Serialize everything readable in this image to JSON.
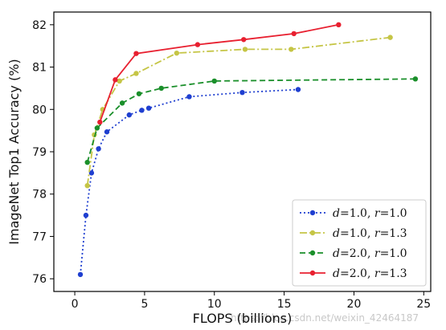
{
  "chart_data": {
    "type": "line",
    "xlabel": "FLOPS (billions)",
    "ylabel": "ImageNet Top1 Accuracy (%)",
    "xlim": [
      -1.5,
      25.5
    ],
    "ylim": [
      75.7,
      82.3
    ],
    "xticks": [
      0,
      5,
      10,
      15,
      20,
      25
    ],
    "yticks": [
      76,
      77,
      78,
      79,
      80,
      81,
      82
    ],
    "grid": false,
    "legend_placement": "lower-right",
    "series": [
      {
        "name": "d=1.0, r=1.0",
        "legend": {
          "a": "d",
          "av": "=1.0, ",
          "b": "r",
          "bv": "=1.0"
        },
        "color": "#1f3fd0",
        "dash": "2,3",
        "x": [
          0.4,
          0.8,
          1.2,
          1.7,
          2.3,
          3.9,
          4.8,
          5.3,
          8.2,
          12.0,
          16.0
        ],
        "y": [
          76.1,
          77.5,
          78.5,
          79.07,
          79.47,
          79.87,
          79.98,
          80.03,
          80.3,
          80.4,
          80.47
        ]
      },
      {
        "name": "d=1.0, r=1.3",
        "legend": {
          "a": "d",
          "av": "=1.0, ",
          "b": "r",
          "bv": "=1.3"
        },
        "color": "#c5c545",
        "dash": "9,3,2,3",
        "x": [
          0.9,
          1.4,
          2.0,
          3.2,
          4.4,
          7.3,
          12.2,
          15.5,
          22.6
        ],
        "y": [
          78.2,
          79.4,
          80.0,
          80.67,
          80.85,
          81.33,
          81.42,
          81.42,
          81.7
        ]
      },
      {
        "name": "d=2.0, r=1.0",
        "legend": {
          "a": "d",
          "av": "=2.0, ",
          "b": "r",
          "bv": "=1.0"
        },
        "color": "#1a8f2a",
        "dash": "7,4",
        "x": [
          0.9,
          1.6,
          3.4,
          4.6,
          6.2,
          10.0,
          24.4
        ],
        "y": [
          78.75,
          79.56,
          80.15,
          80.37,
          80.5,
          80.67,
          80.72
        ]
      },
      {
        "name": "d=2.0, r=1.3",
        "legend": {
          "a": "d",
          "av": "=2.0, ",
          "b": "r",
          "bv": "=1.3"
        },
        "color": "#e82030",
        "dash": "",
        "x": [
          1.8,
          2.9,
          4.4,
          8.8,
          12.1,
          15.7,
          18.9
        ],
        "y": [
          79.7,
          80.7,
          81.32,
          81.53,
          81.65,
          81.79,
          82.0
        ]
      }
    ]
  },
  "watermark": "https://blog.csdn.net/weixin_42464187"
}
